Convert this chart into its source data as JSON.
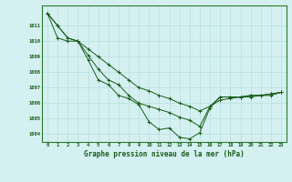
{
  "title": "Graphe pression niveau de la mer (hPa)",
  "bg_color": "#d4f0f0",
  "grid_color": "#b8e0e0",
  "line_color": "#1a5c1a",
  "xlim": [
    -0.5,
    23.5
  ],
  "ylim": [
    1003.5,
    1012.3
  ],
  "yticks": [
    1004,
    1005,
    1006,
    1007,
    1008,
    1009,
    1010,
    1011
  ],
  "xticks": [
    0,
    1,
    2,
    3,
    4,
    5,
    6,
    7,
    8,
    9,
    10,
    11,
    12,
    13,
    14,
    15,
    16,
    17,
    18,
    19,
    20,
    21,
    22,
    23
  ],
  "series1": [
    1011.8,
    1011.0,
    1010.2,
    1010.0,
    1009.1,
    1008.2,
    1007.5,
    1007.2,
    1006.5,
    1006.0,
    1005.8,
    1005.6,
    1005.4,
    1005.1,
    1004.9,
    1004.5,
    1005.8,
    1006.4,
    1006.4,
    1006.4,
    1006.5,
    1006.5,
    1006.6,
    1006.7
  ],
  "series2": [
    1011.8,
    1011.0,
    1010.2,
    1010.0,
    1008.8,
    1007.5,
    1007.2,
    1006.5,
    1006.3,
    1005.9,
    1004.8,
    1004.3,
    1004.4,
    1003.8,
    1003.7,
    1004.1,
    1005.7,
    1006.4,
    1006.4,
    1006.4,
    1006.5,
    1006.5,
    1006.6,
    1006.7
  ],
  "series3": [
    1011.8,
    1010.2,
    1010.0,
    1010.0,
    1009.5,
    1009.0,
    1008.5,
    1008.0,
    1007.5,
    1007.0,
    1006.8,
    1006.5,
    1006.3,
    1006.0,
    1005.8,
    1005.5,
    1005.8,
    1006.2,
    1006.3,
    1006.4,
    1006.4,
    1006.5,
    1006.5,
    1006.7
  ]
}
